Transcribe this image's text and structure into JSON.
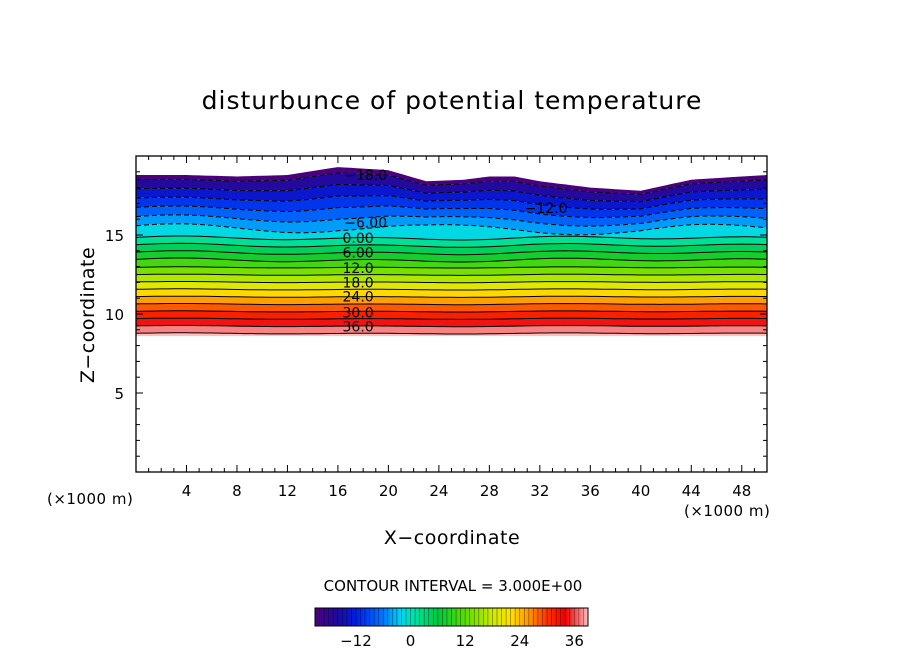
{
  "page": {
    "title": "disturbunce of potential temperature",
    "xlabel": "X−coordinate",
    "ylabel": "Z−coordinate",
    "x_unit": "(×1000 m)",
    "y_unit": "(×1000 m)",
    "contour_interval_text": "CONTOUR INTERVAL = 3.000E+00"
  },
  "chart_data": {
    "type": "heatmap",
    "title": "disturbunce of potential temperature",
    "xlabel": "X−coordinate",
    "ylabel": "Z−coordinate",
    "xlim": [
      0,
      50
    ],
    "ylim": [
      0,
      20
    ],
    "x_ticks": [
      4,
      8,
      12,
      16,
      20,
      24,
      28,
      32,
      36,
      40,
      44,
      48
    ],
    "y_ticks": [
      5,
      10,
      15
    ],
    "contour_interval": 3.0,
    "levels": [
      -18,
      -15,
      -12,
      -9,
      -6,
      -3,
      0,
      3,
      6,
      9,
      12,
      15,
      18,
      21,
      24,
      27,
      30,
      33,
      36,
      39
    ],
    "negative_contours": "dashed",
    "contour_labels": [
      {
        "text": "−18.0",
        "x": 18.2,
        "y": 18.8
      },
      {
        "text": "−12.0",
        "x": 32.5,
        "y": 16.7
      },
      {
        "text": "−6.00",
        "x": 18.2,
        "y": 15.8
      },
      {
        "text": "0.00",
        "x": 17.6,
        "y": 14.8
      },
      {
        "text": "6.00",
        "x": 17.6,
        "y": 13.9
      },
      {
        "text": "12.0",
        "x": 17.6,
        "y": 12.9
      },
      {
        "text": "18.0",
        "x": 17.6,
        "y": 12.0
      },
      {
        "text": "24.0",
        "x": 17.6,
        "y": 11.1
      },
      {
        "text": "30.0",
        "x": 17.6,
        "y": 10.1
      },
      {
        "text": "36.0",
        "x": 17.6,
        "y": 9.2
      }
    ],
    "field": {
      "bottom_z": 8.6,
      "top_z": [
        {
          "x": 0,
          "y": 18.8
        },
        {
          "x": 4,
          "y": 18.8
        },
        {
          "x": 8,
          "y": 18.7
        },
        {
          "x": 12,
          "y": 18.8
        },
        {
          "x": 16,
          "y": 19.3
        },
        {
          "x": 20,
          "y": 19.1
        },
        {
          "x": 23,
          "y": 18.4
        },
        {
          "x": 26,
          "y": 18.5
        },
        {
          "x": 28,
          "y": 18.7
        },
        {
          "x": 30,
          "y": 18.7
        },
        {
          "x": 32,
          "y": 18.4
        },
        {
          "x": 36,
          "y": 18.0
        },
        {
          "x": 40,
          "y": 17.8
        },
        {
          "x": 44,
          "y": 18.5
        },
        {
          "x": 48,
          "y": 18.7
        },
        {
          "x": 50,
          "y": 18.8
        }
      ]
    },
    "colorbar": {
      "ticks": [
        -12,
        0,
        12,
        24,
        36
      ],
      "tick_labels": [
        "−12",
        "0",
        "12",
        "24",
        "36"
      ],
      "range": [
        -21,
        39
      ]
    }
  }
}
